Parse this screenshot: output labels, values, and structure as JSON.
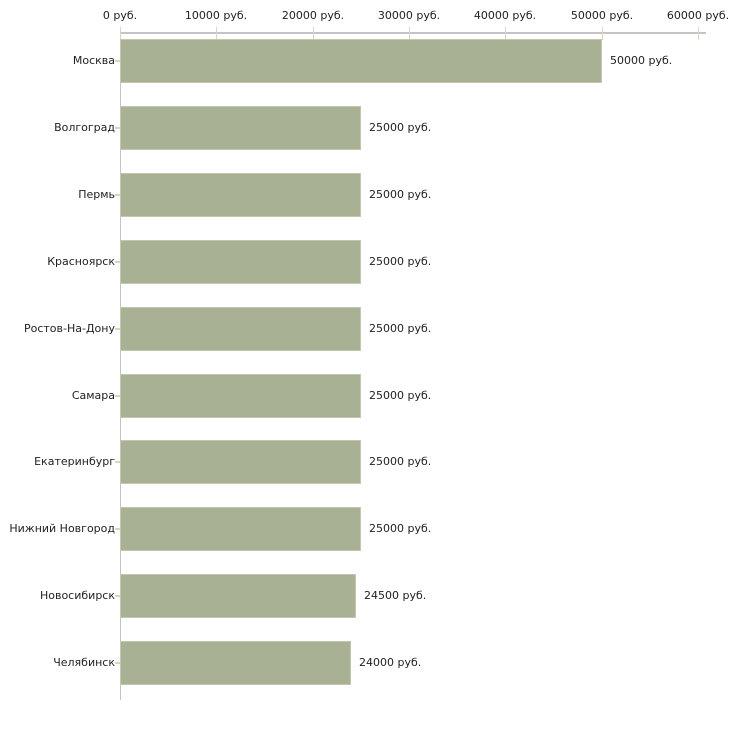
{
  "chart_data": {
    "type": "bar",
    "orientation": "horizontal",
    "title": "",
    "xlabel": "",
    "ylabel": "",
    "unit_suffix": "руб.",
    "categories": [
      "Москва",
      "Волгоград",
      "Пермь",
      "Красноярск",
      "Ростов-На-Дону",
      "Самара",
      "Екатеринбург",
      "Нижний Новгород",
      "Новосибирск",
      "Челябинск"
    ],
    "values": [
      50000,
      25000,
      25000,
      25000,
      25000,
      25000,
      25000,
      25000,
      24500,
      24000
    ],
    "value_labels": [
      "50000 руб.",
      "25000 руб.",
      "25000 руб.",
      "25000 руб.",
      "25000 руб.",
      "25000 руб.",
      "25000 руб.",
      "25000 руб.",
      "24500 руб.",
      "24000 руб."
    ],
    "x_ticks": [
      0,
      10000,
      20000,
      30000,
      40000,
      50000,
      60000
    ],
    "x_tick_labels": [
      "0 руб.",
      "10000 руб.",
      "20000 руб.",
      "30000 руб.",
      "40000 руб.",
      "50000 руб.",
      "60000 руб."
    ],
    "xlim": [
      0,
      60000
    ],
    "grid": false,
    "legend": "none",
    "colors": {
      "bar_fill": "#a9b194",
      "bar_edge": "#c2c8ad",
      "axis_line": "#c4c4c4",
      "tick_mark": "#d8d8b8",
      "text": "#222222",
      "background": "#ffffff"
    }
  }
}
